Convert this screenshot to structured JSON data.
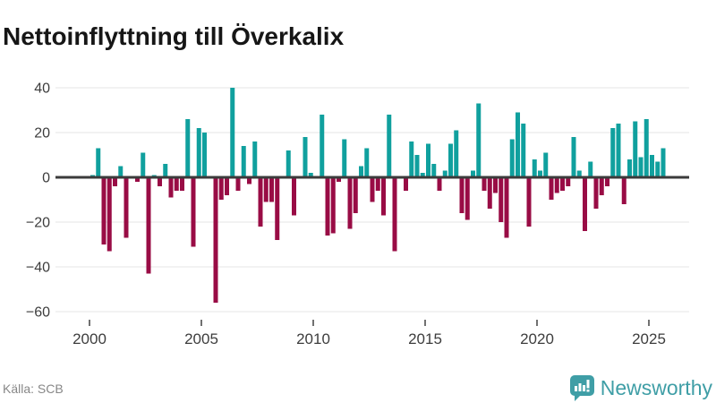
{
  "title": "Nettoinflyttning till Överkalix",
  "source": "Källa: SCB",
  "brand": {
    "name": "Newsworthy"
  },
  "colors": {
    "positive": "#10a09e",
    "negative": "#990c45",
    "axis": "#3b3b3b",
    "grid": "#e9e9e9",
    "tick": "#4d4d4d",
    "tick_label": "#3d3d3d",
    "title": "#161616",
    "source_text": "#878787",
    "brand_teal": "#3f9ea6"
  },
  "chart_data": {
    "type": "bar",
    "title": "Nettoinflyttning till Överkalix",
    "frequency": "quarterly",
    "x_start": "2000-Q1",
    "x_end": "2025-Q3",
    "values": [
      1,
      13,
      -30,
      -33,
      -4,
      5,
      -27,
      0,
      -2,
      11,
      -43,
      1,
      -4,
      6,
      -9,
      -6,
      -6,
      26,
      -31,
      22,
      20,
      0,
      -56,
      -10,
      -8,
      40,
      -6,
      14,
      -3,
      16,
      -22,
      -11,
      -11,
      -28,
      0,
      12,
      -17,
      0,
      18,
      2,
      0,
      28,
      -26,
      -25,
      -2,
      17,
      -23,
      -16,
      5,
      13,
      -11,
      -6,
      -17,
      28,
      -33,
      0,
      -6,
      16,
      10,
      2,
      15,
      6,
      -6,
      3,
      15,
      21,
      -16,
      -19,
      3,
      33,
      -6,
      -14,
      -7,
      -20,
      -27,
      17,
      29,
      24,
      -22,
      8,
      3,
      11,
      -10,
      -7,
      -6,
      -4,
      18,
      3,
      -24,
      7,
      -14,
      -8,
      -4,
      22,
      24,
      -12,
      8,
      25,
      9,
      26,
      10,
      7,
      13
    ],
    "y_ticks": [
      40,
      20,
      0,
      -20,
      -40,
      -60
    ],
    "x_ticks": [
      2000,
      2005,
      2010,
      2015,
      2020,
      2025
    ],
    "ylim": [
      -60,
      45
    ],
    "grid": true,
    "legend": "none",
    "xlabel": "",
    "ylabel": ""
  }
}
